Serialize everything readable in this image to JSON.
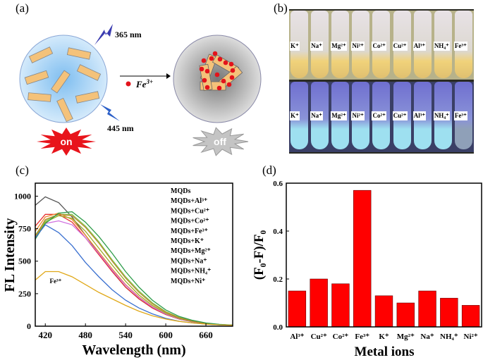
{
  "panels": {
    "a": {
      "label": "(a)",
      "excitation": "365 nm",
      "emission": "445 nm",
      "reagent": "Fe",
      "reagent_sup": "3+",
      "state_on": "on",
      "state_off": "off",
      "colors": {
        "on": "#e8141b",
        "off": "#b9b9b9",
        "particle": "#f4c27a",
        "dot": "#e3131b"
      }
    },
    "b": {
      "label": "(b)",
      "ions": [
        "K⁺",
        "Na⁺",
        "Mg²⁺",
        "Ni²⁺",
        "Co²⁺",
        "Cu²⁺",
        "Al³⁺",
        "NH₄⁺",
        "Fe³⁺"
      ]
    },
    "c": {
      "label": "(c)"
    },
    "d": {
      "label": "(d)"
    }
  },
  "chart_data": [
    {
      "type": "line",
      "xlabel": "Wavelength (nm)",
      "ylabel": "FL Intensity",
      "xlim": [
        405,
        700
      ],
      "ylim": [
        0,
        1100
      ],
      "xticks": [
        420,
        480,
        540,
        600,
        660
      ],
      "yticks": [
        0,
        250,
        500,
        750,
        1000
      ],
      "grid": false,
      "legend_placement": "top-right",
      "legend": [
        "MQDs",
        "MQDs+Al³⁺",
        "MQDs+Cu²⁺",
        "MQDs+Co²⁺",
        "MQDs+Fe³⁺",
        "MQDs+K⁺",
        "MQDs+Mg²⁺",
        "MQDs+Na⁺",
        "MQDs+NH₄⁺",
        "MQDs+Ni⁺"
      ],
      "annotation": {
        "text": "Fe³⁺",
        "x": 435,
        "y": 330
      },
      "x": [
        405,
        420,
        440,
        460,
        480,
        500,
        520,
        540,
        560,
        580,
        600,
        620,
        640,
        660,
        680,
        700
      ],
      "series": [
        {
          "color": "#555555",
          "values": [
            930,
            995,
            950,
            840,
            700,
            560,
            420,
            300,
            210,
            140,
            90,
            55,
            33,
            20,
            12,
            8
          ]
        },
        {
          "color": "#e53030",
          "values": [
            770,
            860,
            860,
            800,
            680,
            550,
            420,
            300,
            210,
            140,
            90,
            55,
            33,
            20,
            12,
            8
          ]
        },
        {
          "color": "#f08a30",
          "values": [
            730,
            840,
            870,
            820,
            700,
            570,
            440,
            320,
            225,
            150,
            95,
            58,
            35,
            21,
            12,
            8
          ]
        },
        {
          "color": "#d070e0",
          "values": [
            700,
            790,
            810,
            780,
            680,
            560,
            430,
            315,
            220,
            148,
            94,
            57,
            34,
            20,
            12,
            8
          ]
        },
        {
          "color": "#9aaa20",
          "values": [
            680,
            800,
            850,
            830,
            730,
            600,
            470,
            345,
            240,
            160,
            100,
            60,
            36,
            21,
            12,
            8
          ]
        },
        {
          "color": "#80c850",
          "values": [
            700,
            810,
            860,
            860,
            770,
            650,
            510,
            380,
            270,
            180,
            112,
            67,
            40,
            23,
            13,
            8
          ]
        },
        {
          "color": "#b8862a",
          "values": [
            690,
            820,
            860,
            850,
            760,
            640,
            500,
            370,
            260,
            172,
            108,
            65,
            38,
            22,
            13,
            8
          ]
        },
        {
          "color": "#2e9c4a",
          "values": [
            670,
            790,
            870,
            880,
            800,
            690,
            560,
            420,
            300,
            200,
            125,
            75,
            45,
            25,
            14,
            9
          ]
        },
        {
          "color": "#3a70d0",
          "values": [
            680,
            780,
            720,
            620,
            490,
            380,
            280,
            200,
            140,
            95,
            60,
            38,
            25,
            16,
            10,
            7
          ]
        },
        {
          "color": "#e0a818",
          "values": [
            355,
            420,
            420,
            380,
            320,
            260,
            210,
            160,
            115,
            80,
            55,
            37,
            25,
            16,
            10,
            7
          ]
        }
      ]
    },
    {
      "type": "bar",
      "xlabel": "Metal ions",
      "ylabel": "(F₀-F)/F₀",
      "ylim": [
        0,
        0.6
      ],
      "yticks": [
        "0.0",
        "0.2",
        "0.4",
        "0.6"
      ],
      "grid": false,
      "categories": [
        "Al³⁺",
        "Cu²⁺",
        "Co²⁺",
        "Fe³⁺",
        "K⁺",
        "Mg²⁺",
        "Na⁺",
        "NH₄⁺",
        "Ni²⁺"
      ],
      "values": [
        0.15,
        0.2,
        0.18,
        0.57,
        0.13,
        0.1,
        0.15,
        0.12,
        0.09
      ],
      "color": "#ff0000"
    }
  ]
}
